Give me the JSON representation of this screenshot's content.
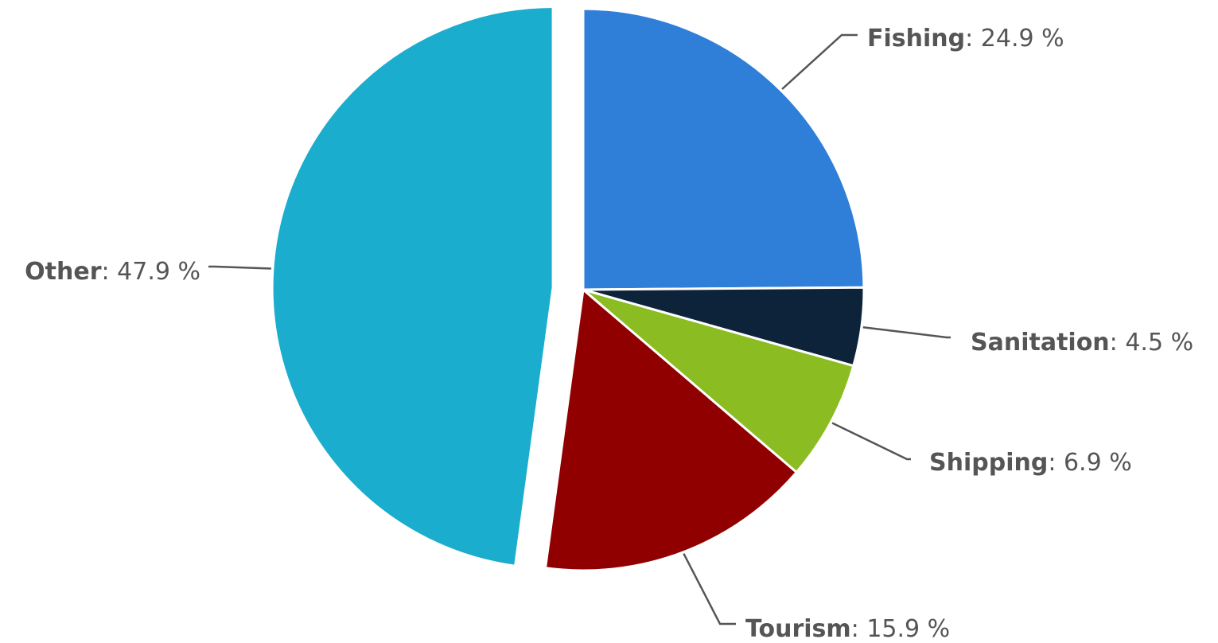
{
  "chart_data": {
    "type": "pie",
    "title": "",
    "slices": [
      {
        "name": "Fishing",
        "value": 24.9,
        "value_text": "24.9 %",
        "color": "#2f7ed8"
      },
      {
        "name": "Sanitation",
        "value": 4.5,
        "value_text": "4.5 %",
        "color": "#0d233a"
      },
      {
        "name": "Shipping",
        "value": 6.9,
        "value_text": "6.9 %",
        "color": "#8bbc21"
      },
      {
        "name": "Tourism",
        "value": 15.9,
        "value_text": "15.9 %",
        "color": "#910000"
      },
      {
        "name": "Other",
        "value": 47.9,
        "value_text": "47.9 %",
        "color": "#1aadce",
        "exploded": true
      }
    ],
    "start_angle": "12 o'clock",
    "direction": "clockwise",
    "label_separator": ": ",
    "connector_color": "#555555"
  }
}
